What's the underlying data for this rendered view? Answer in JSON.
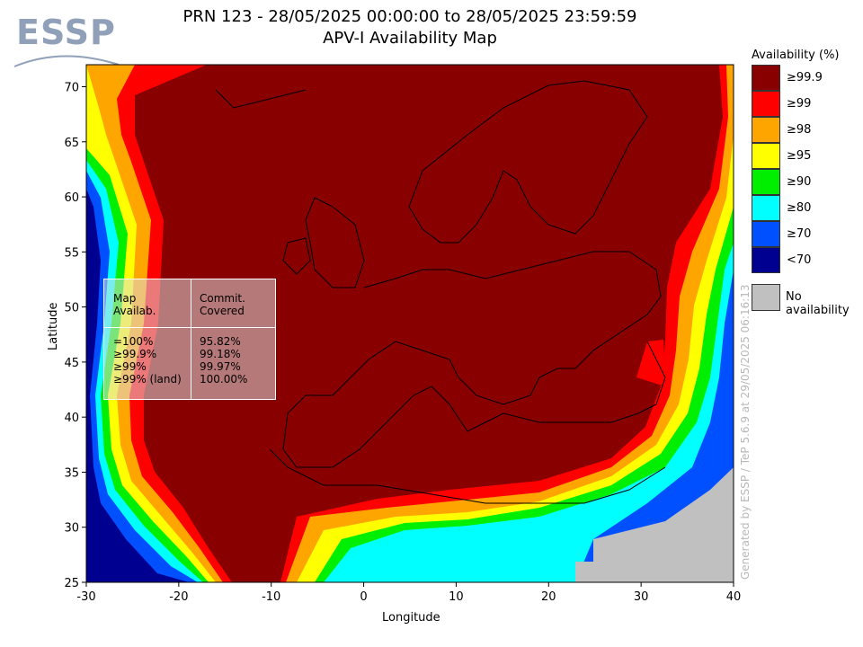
{
  "title_line1": "PRN 123 - 28/05/2025 00:00:00 to 28/05/2025 23:59:59",
  "title_line2": "APV-I Availability Map",
  "logo": "ESSP",
  "x_axis_label": "Longitude",
  "y_axis_label": "Latitude",
  "x_ticks": [
    -30,
    -20,
    -10,
    0,
    10,
    20,
    30,
    40
  ],
  "y_ticks": [
    25,
    30,
    35,
    40,
    45,
    50,
    55,
    60,
    65,
    70
  ],
  "legend": {
    "title": "Availability (%)",
    "items": [
      {
        "label": "≥99.9",
        "color": "#880000"
      },
      {
        "label": "≥99",
        "color": "#ff0000"
      },
      {
        "label": "≥98",
        "color": "#ffa500"
      },
      {
        "label": "≥95",
        "color": "#ffff00"
      },
      {
        "label": "≥90",
        "color": "#00ee00"
      },
      {
        "label": "≥80",
        "color": "#00ffff"
      },
      {
        "label": "≥70",
        "color": "#0050ff"
      },
      {
        "label": "<70",
        "color": "#000090"
      }
    ],
    "no_availability": "No availability"
  },
  "stats_table": {
    "header_left": "Map\nAvailab.",
    "header_right": "Commit.\nCovered",
    "rows_left": "=100%\n≥99.9%\n≥99%\n≥99% (land)",
    "rows_right": "95.82%\n99.18%\n99.97%\n100.00%"
  },
  "generated_by": "Generated by ESSP / TeP 5.6.9 at 29/05/2025 06:16:13",
  "chart_data": {
    "type": "heatmap",
    "xlabel": "Longitude",
    "ylabel": "Latitude",
    "xlim": [
      -30,
      40
    ],
    "ylim": [
      25,
      72
    ],
    "legend_placement": "right"
  }
}
